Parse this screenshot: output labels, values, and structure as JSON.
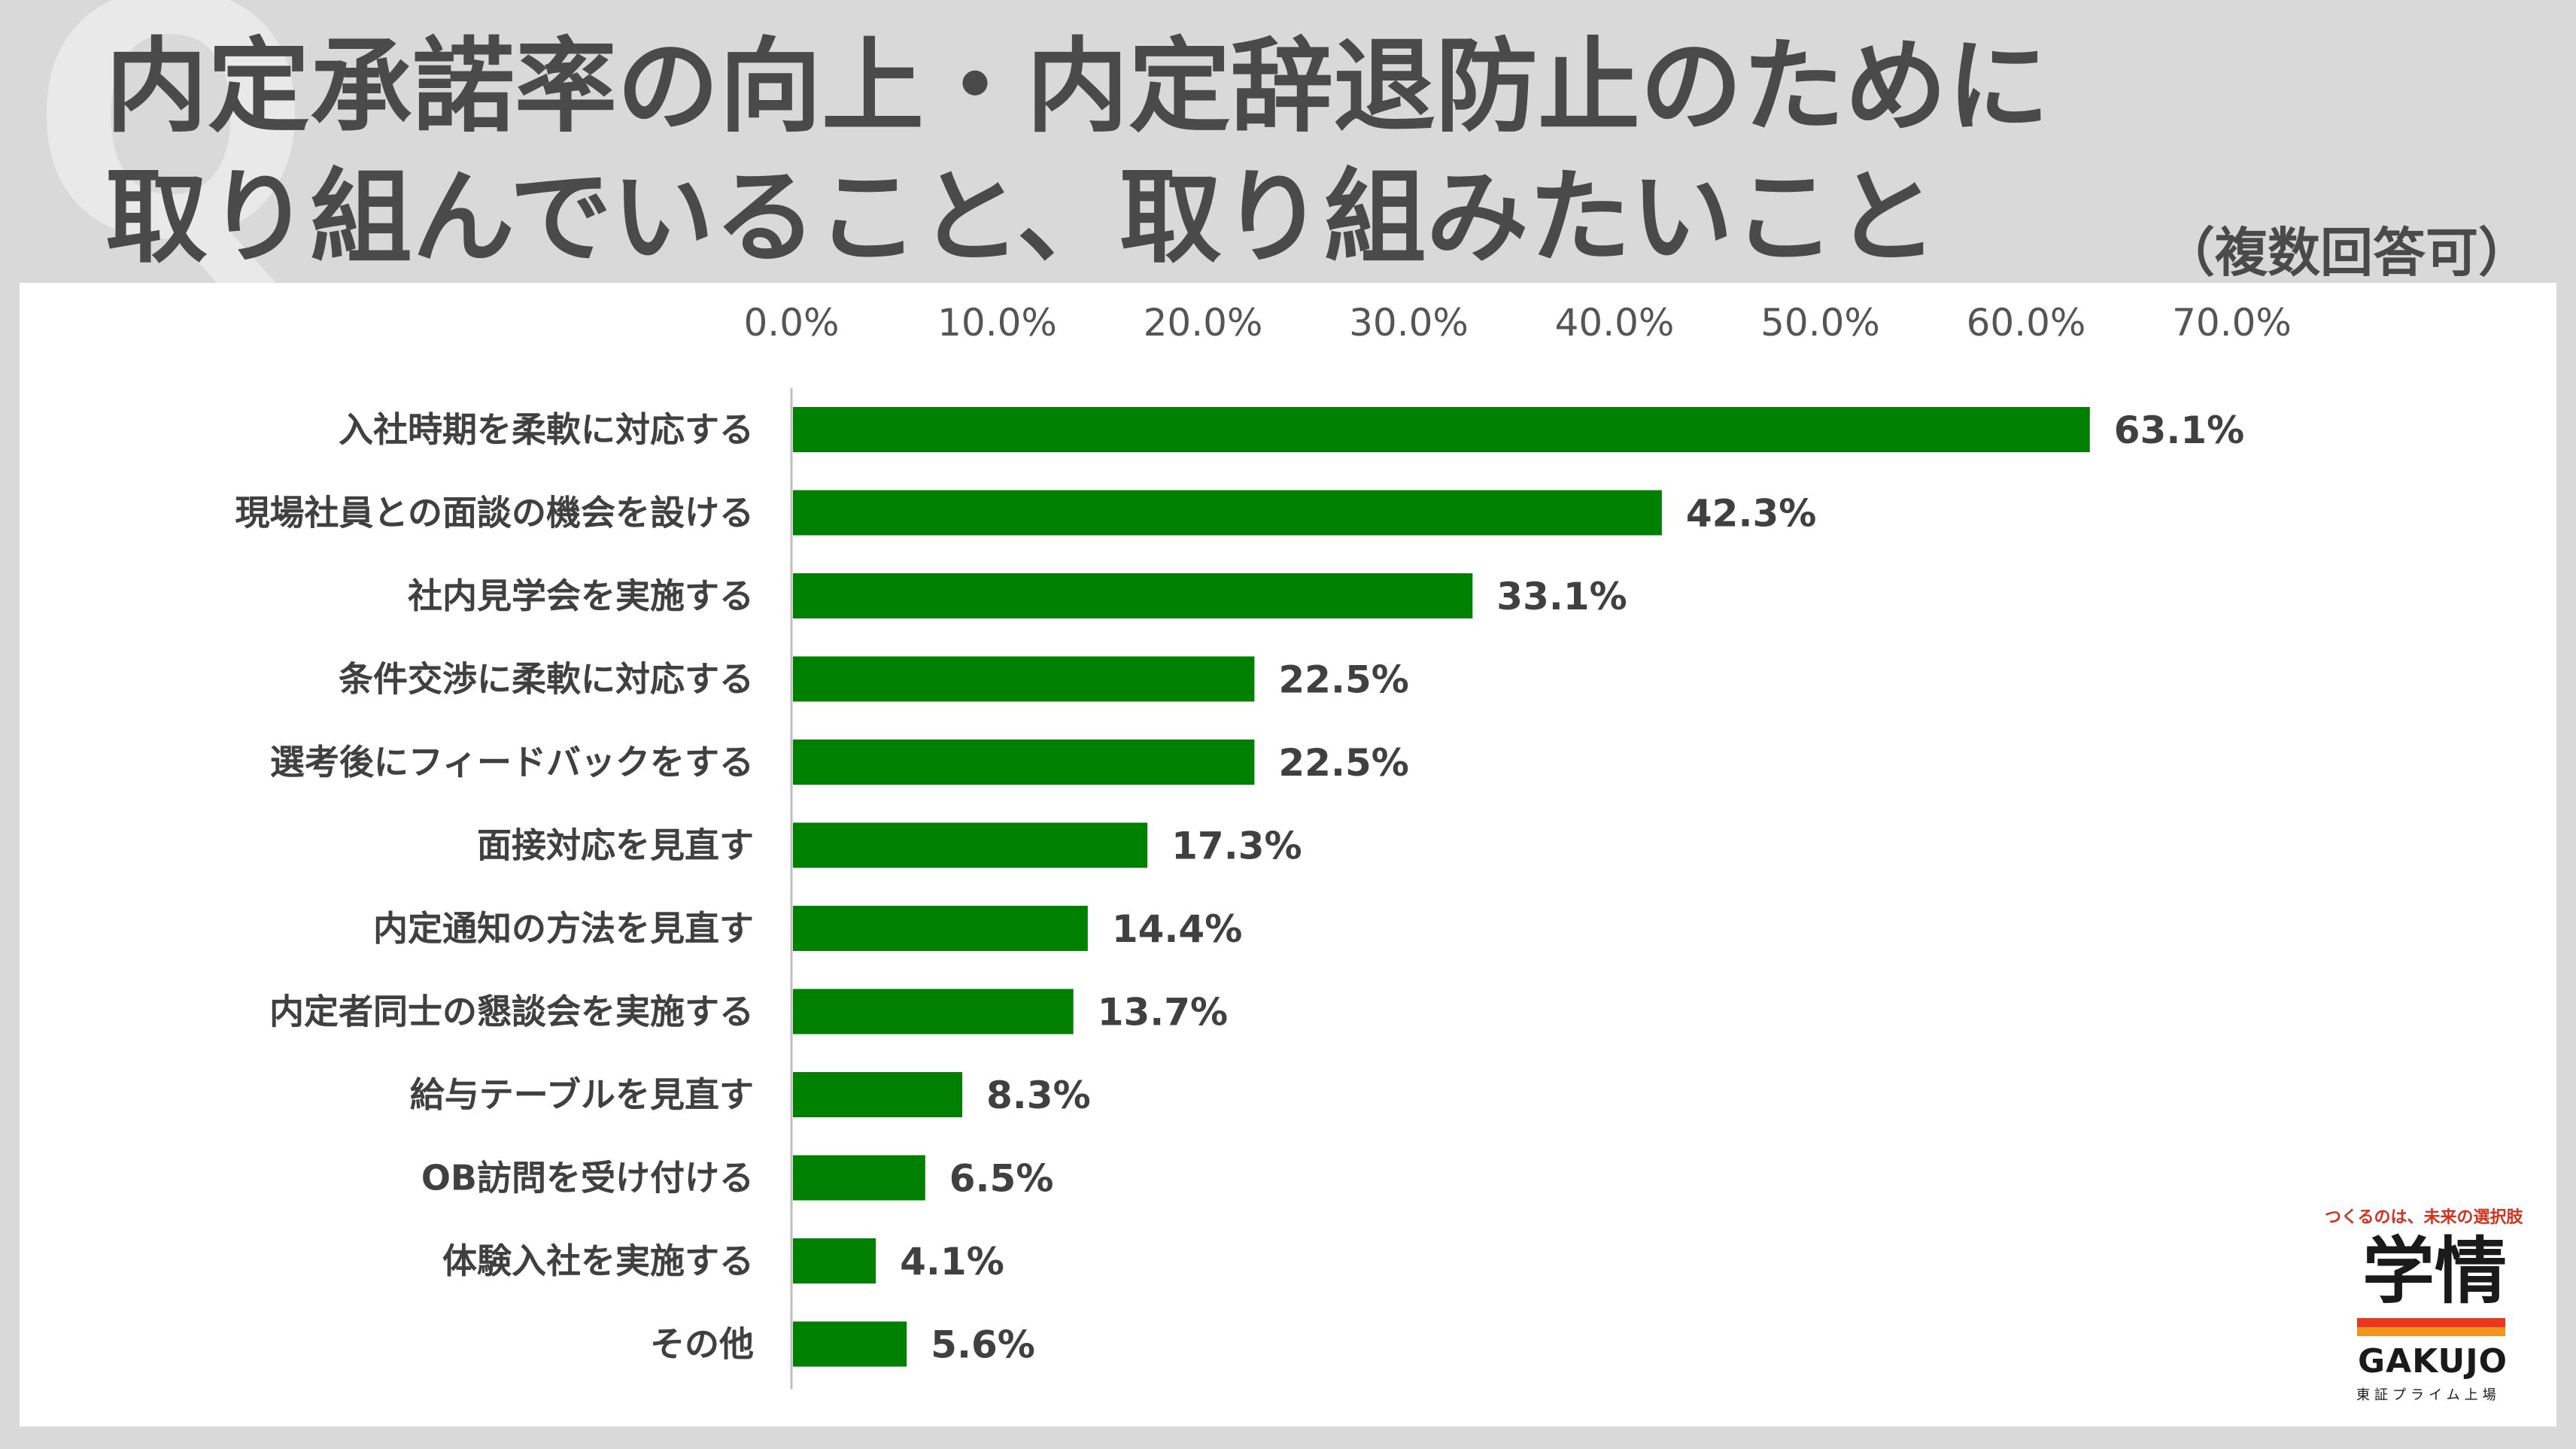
{
  "header": {
    "bg_mark": "Q",
    "title_line1": "内定承諾率の向上・内定辞退防止のために",
    "title_line2": "取り組んでいること、取り組みたいこと",
    "note": "（複数回答可）"
  },
  "logo": {
    "tagline": "つくるのは、未来の選択肢",
    "name": "学情",
    "name_en": "GAKUJO",
    "listing": "東証プライム上場"
  },
  "colors": {
    "bar": "#008000",
    "background": "#d9d9d9",
    "panel": "#ffffff"
  },
  "chart_data": {
    "type": "bar",
    "orientation": "horizontal",
    "categories": [
      "入社時期を柔軟に対応する",
      "現場社員との面談の機会を設ける",
      "社内見学会を実施する",
      "条件交渉に柔軟に対応する",
      "選考後にフィードバックをする",
      "面接対応を見直す",
      "内定通知の方法を見直す",
      "内定者同士の懇談会を実施する",
      "給与テーブルを見直す",
      "OB訪問を受け付ける",
      "体験入社を実施する",
      "その他"
    ],
    "values": [
      63.1,
      42.3,
      33.1,
      22.5,
      22.5,
      17.3,
      14.4,
      13.7,
      8.3,
      6.5,
      4.1,
      5.6
    ],
    "value_labels": [
      "63.1%",
      "42.3%",
      "33.1%",
      "22.5%",
      "22.5%",
      "17.3%",
      "14.4%",
      "13.7%",
      "8.3%",
      "6.5%",
      "4.1%",
      "5.6%"
    ],
    "xlim": [
      0,
      70
    ],
    "ticks": [
      "0.0%",
      "10.0%",
      "20.0%",
      "30.0%",
      "40.0%",
      "50.0%",
      "60.0%",
      "70.0%"
    ],
    "axis_position": "top",
    "grid": false,
    "legend": "none"
  }
}
